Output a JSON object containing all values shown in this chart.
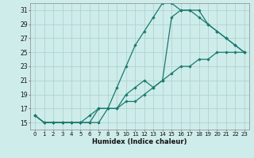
{
  "xlabel": "Humidex (Indice chaleur)",
  "bg_color": "#ceecea",
  "grid_color": "#aed4d0",
  "line_color": "#1a7a6e",
  "xlim": [
    -0.5,
    23.5
  ],
  "ylim": [
    14,
    32
  ],
  "xticks": [
    0,
    1,
    2,
    3,
    4,
    5,
    6,
    7,
    8,
    9,
    10,
    11,
    12,
    13,
    14,
    15,
    16,
    17,
    18,
    19,
    20,
    21,
    22,
    23
  ],
  "yticks": [
    15,
    17,
    19,
    21,
    23,
    25,
    27,
    29,
    31
  ],
  "line1_x": [
    0,
    1,
    2,
    3,
    4,
    5,
    6,
    7,
    8,
    9,
    10,
    11,
    12,
    13,
    14,
    15,
    16,
    17,
    18,
    19,
    20,
    21,
    22,
    23
  ],
  "line1_y": [
    16,
    15,
    15,
    15,
    15,
    15,
    15,
    17,
    17,
    20,
    23,
    26,
    28,
    30,
    32,
    32,
    31,
    31,
    30,
    29,
    28,
    27,
    26,
    25
  ],
  "line2_x": [
    0,
    1,
    2,
    3,
    4,
    5,
    6,
    7,
    8,
    9,
    10,
    11,
    12,
    13,
    14,
    15,
    16,
    17,
    18,
    19,
    20,
    21,
    22,
    23
  ],
  "line2_y": [
    16,
    15,
    15,
    15,
    15,
    15,
    15,
    15,
    17,
    17,
    19,
    20,
    21,
    20,
    21,
    30,
    31,
    31,
    31,
    29,
    28,
    27,
    26,
    25
  ],
  "line3_x": [
    0,
    1,
    2,
    3,
    4,
    5,
    6,
    7,
    8,
    9,
    10,
    11,
    12,
    13,
    14,
    15,
    16,
    17,
    18,
    19,
    20,
    21,
    22,
    23
  ],
  "line3_y": [
    16,
    15,
    15,
    15,
    15,
    15,
    16,
    17,
    17,
    17,
    18,
    18,
    19,
    20,
    21,
    22,
    23,
    23,
    24,
    24,
    25,
    25,
    25,
    25
  ]
}
